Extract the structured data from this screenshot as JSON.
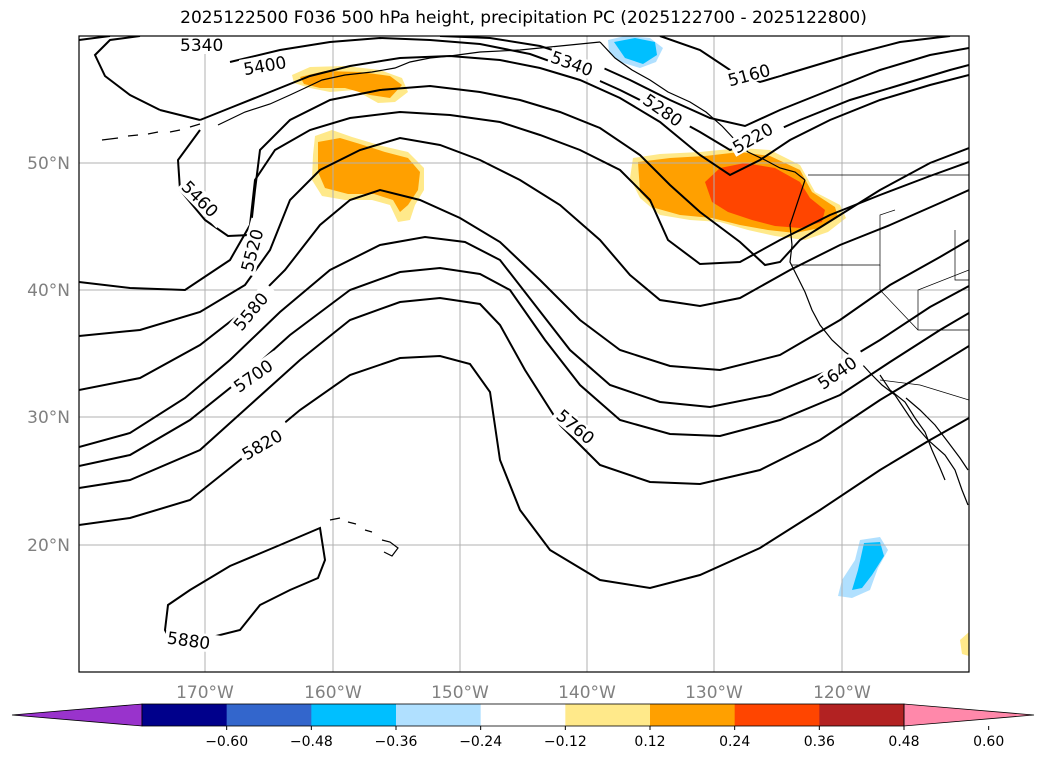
{
  "title": "2025122500 F036 500 hPa height, precipitation PC (2025122700 - 2025122800)",
  "map": {
    "lon_range": [
      -180,
      -110
    ],
    "lat_range": [
      10,
      60
    ],
    "lon_ticks": [
      {
        "lon": -170,
        "label": "170°W"
      },
      {
        "lon": -160,
        "label": "160°W"
      },
      {
        "lon": -150,
        "label": "150°W"
      },
      {
        "lon": -140,
        "label": "140°W"
      },
      {
        "lon": -130,
        "label": "130°W"
      },
      {
        "lon": -120,
        "label": "120°W"
      }
    ],
    "lat_ticks": [
      {
        "lat": 20,
        "label": "20°N"
      },
      {
        "lat": 30,
        "label": "30°N"
      },
      {
        "lat": 40,
        "label": "40°N"
      },
      {
        "lat": 50,
        "label": "50°N"
      }
    ],
    "grid": true
  },
  "contour_labels": [
    "5160",
    "5220",
    "5280",
    "5340",
    "5340",
    "5400",
    "5460",
    "5520",
    "5580",
    "5640",
    "5700",
    "5760",
    "5820",
    "5880"
  ],
  "colorbar": {
    "colors": [
      "#9933cc",
      "#00008b",
      "#3366cc",
      "#00bfff",
      "#b0e0ff",
      "#ffffff",
      "#ffe98a",
      "#ffa000",
      "#ff4500",
      "#b22222",
      "#ff88aa"
    ],
    "ticks": [
      "−0.60",
      "−0.48",
      "−0.36",
      "−0.24",
      "−0.12",
      "0.12",
      "0.24",
      "0.36",
      "0.48",
      "0.60"
    ],
    "extend": "both"
  }
}
